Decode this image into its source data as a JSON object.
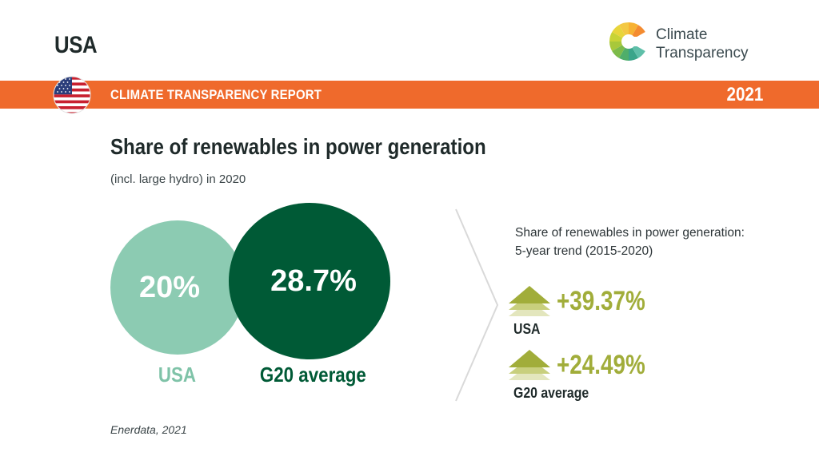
{
  "header": {
    "country": "USA",
    "brand_line1": "Climate",
    "brand_line2": "Transparency"
  },
  "banner": {
    "title": "CLIMATE TRANSPARENCY REPORT",
    "year": "2021"
  },
  "main": {
    "title": "Share of renewables in power generation",
    "subtitle": "(incl. large hydro) in 2020"
  },
  "comparison": {
    "usa": {
      "label": "USA",
      "value_text": "20%",
      "value": 20,
      "color": "#8ccbb2"
    },
    "g20": {
      "label": "G20 average",
      "value_text": "28.7%",
      "value": 28.7,
      "color": "#005a36"
    }
  },
  "trend": {
    "title_line1": "Share of renewables in power generation:",
    "title_line2": "5-year trend (2015-2020)",
    "items": [
      {
        "value": "+39.37%",
        "label": "USA"
      },
      {
        "value": "+24.49%",
        "label": "G20 average"
      }
    ],
    "color": "#a1ad3a"
  },
  "source": "Enerdata, 2021",
  "colors": {
    "banner": "#ef6a2c",
    "usa": "#8ccbb2",
    "g20": "#005a36",
    "trend": "#a1ad3a"
  }
}
